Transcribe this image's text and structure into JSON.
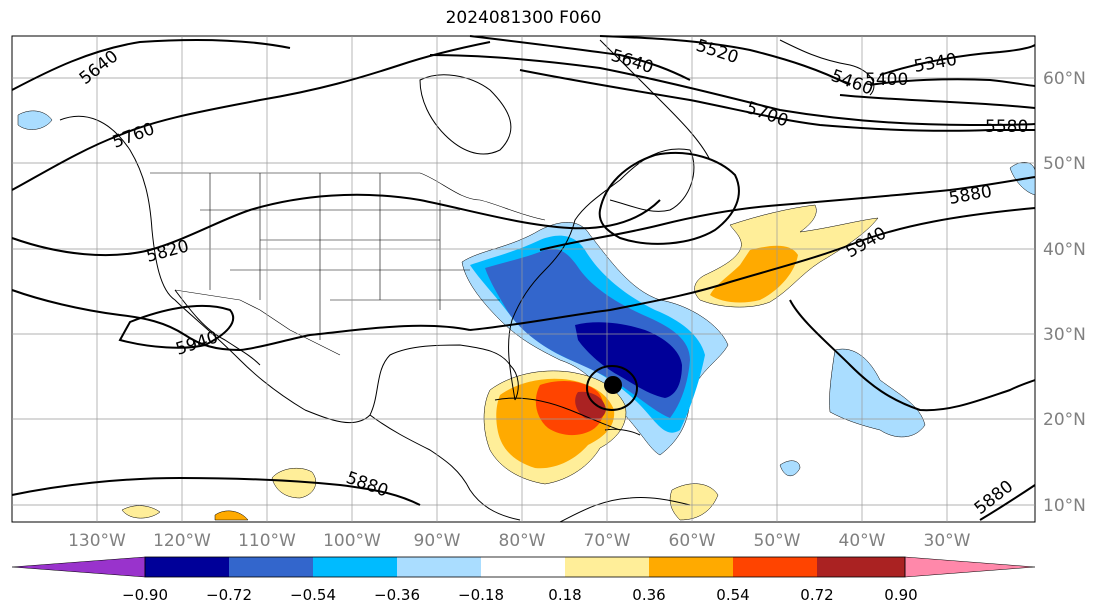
{
  "title": "2024081300 F060",
  "map": {
    "lon_labels": [
      "130°W",
      "120°W",
      "110°W",
      "100°W",
      "90°W",
      "80°W",
      "70°W",
      "60°W",
      "50°W",
      "40°W",
      "30°W"
    ],
    "lat_labels": [
      "60°N",
      "50°N",
      "40°N",
      "30°N",
      "20°N",
      "10°N"
    ],
    "label_color": "#808080",
    "land_color": "#ffffff",
    "coast_color": "#000000"
  },
  "contours": {
    "color": "#000000",
    "labels": [
      "5640",
      "5760",
      "5820",
      "5940",
      "5880",
      "5640",
      "5520",
      "5340",
      "5400",
      "5460",
      "5700",
      "5580",
      "5880",
      "5940",
      "5880"
    ]
  },
  "storm_marker": {
    "label": "storm-center",
    "color": "#000000"
  },
  "colorbar": {
    "ticks": [
      "−0.90",
      "−0.72",
      "−0.54",
      "−0.36",
      "−0.18",
      "0.18",
      "0.36",
      "0.54",
      "0.72",
      "0.90"
    ],
    "colors": [
      "#9933cc",
      "#000099",
      "#3366cc",
      "#00bbff",
      "#aaddff",
      "#ffffff",
      "#ffee99",
      "#ffaa00",
      "#ff4400",
      "#aa2222",
      "#ff88aa"
    ]
  }
}
